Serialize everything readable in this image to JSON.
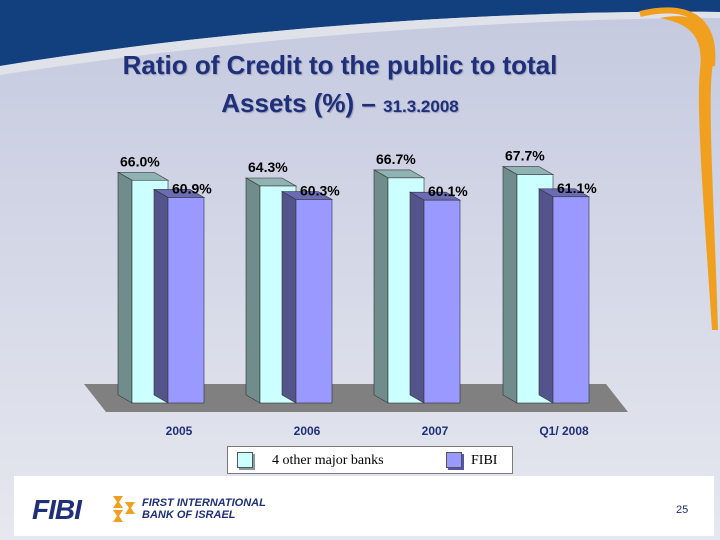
{
  "title": {
    "line1": "Ratio of Credit to the public to total",
    "line2": "Assets (%) –",
    "date": "31.3.2008"
  },
  "chart_data": {
    "type": "bar",
    "title": "Ratio of Credit to the public to total Assets (%) – 31.3.2008",
    "categories": [
      "2005",
      "2006",
      "2007",
      "Q1/ 2008"
    ],
    "series": [
      {
        "name": "4 other major banks",
        "values": [
          66.0,
          64.3,
          66.7,
          67.7
        ],
        "labels": [
          "66.0%",
          "64.3%",
          "66.7%",
          "67.7%"
        ],
        "color": "#ccffff"
      },
      {
        "name": "FIBI",
        "values": [
          60.9,
          60.3,
          60.1,
          61.1
        ],
        "labels": [
          "60.9%",
          "60.3%",
          "60.1%",
          "61.1%"
        ],
        "color": "#9999ff"
      }
    ],
    "xlabel": "",
    "ylabel": "",
    "ylim": [
      0,
      72
    ],
    "legend_position": "bottom",
    "grid": false
  },
  "legend": {
    "item1": "4 other major banks",
    "item2": "FIBI"
  },
  "footer": {
    "logo_text": "FIBI",
    "bank_name_line1": "FIRST INTERNATIONAL",
    "bank_name_line2": "BANK OF ISRAEL",
    "page_number": "25"
  },
  "colors": {
    "accent": "#1f2f7a",
    "swoosh": "#f0a01e",
    "bar_others": "#ccffff",
    "bar_fibi": "#9999ff"
  }
}
